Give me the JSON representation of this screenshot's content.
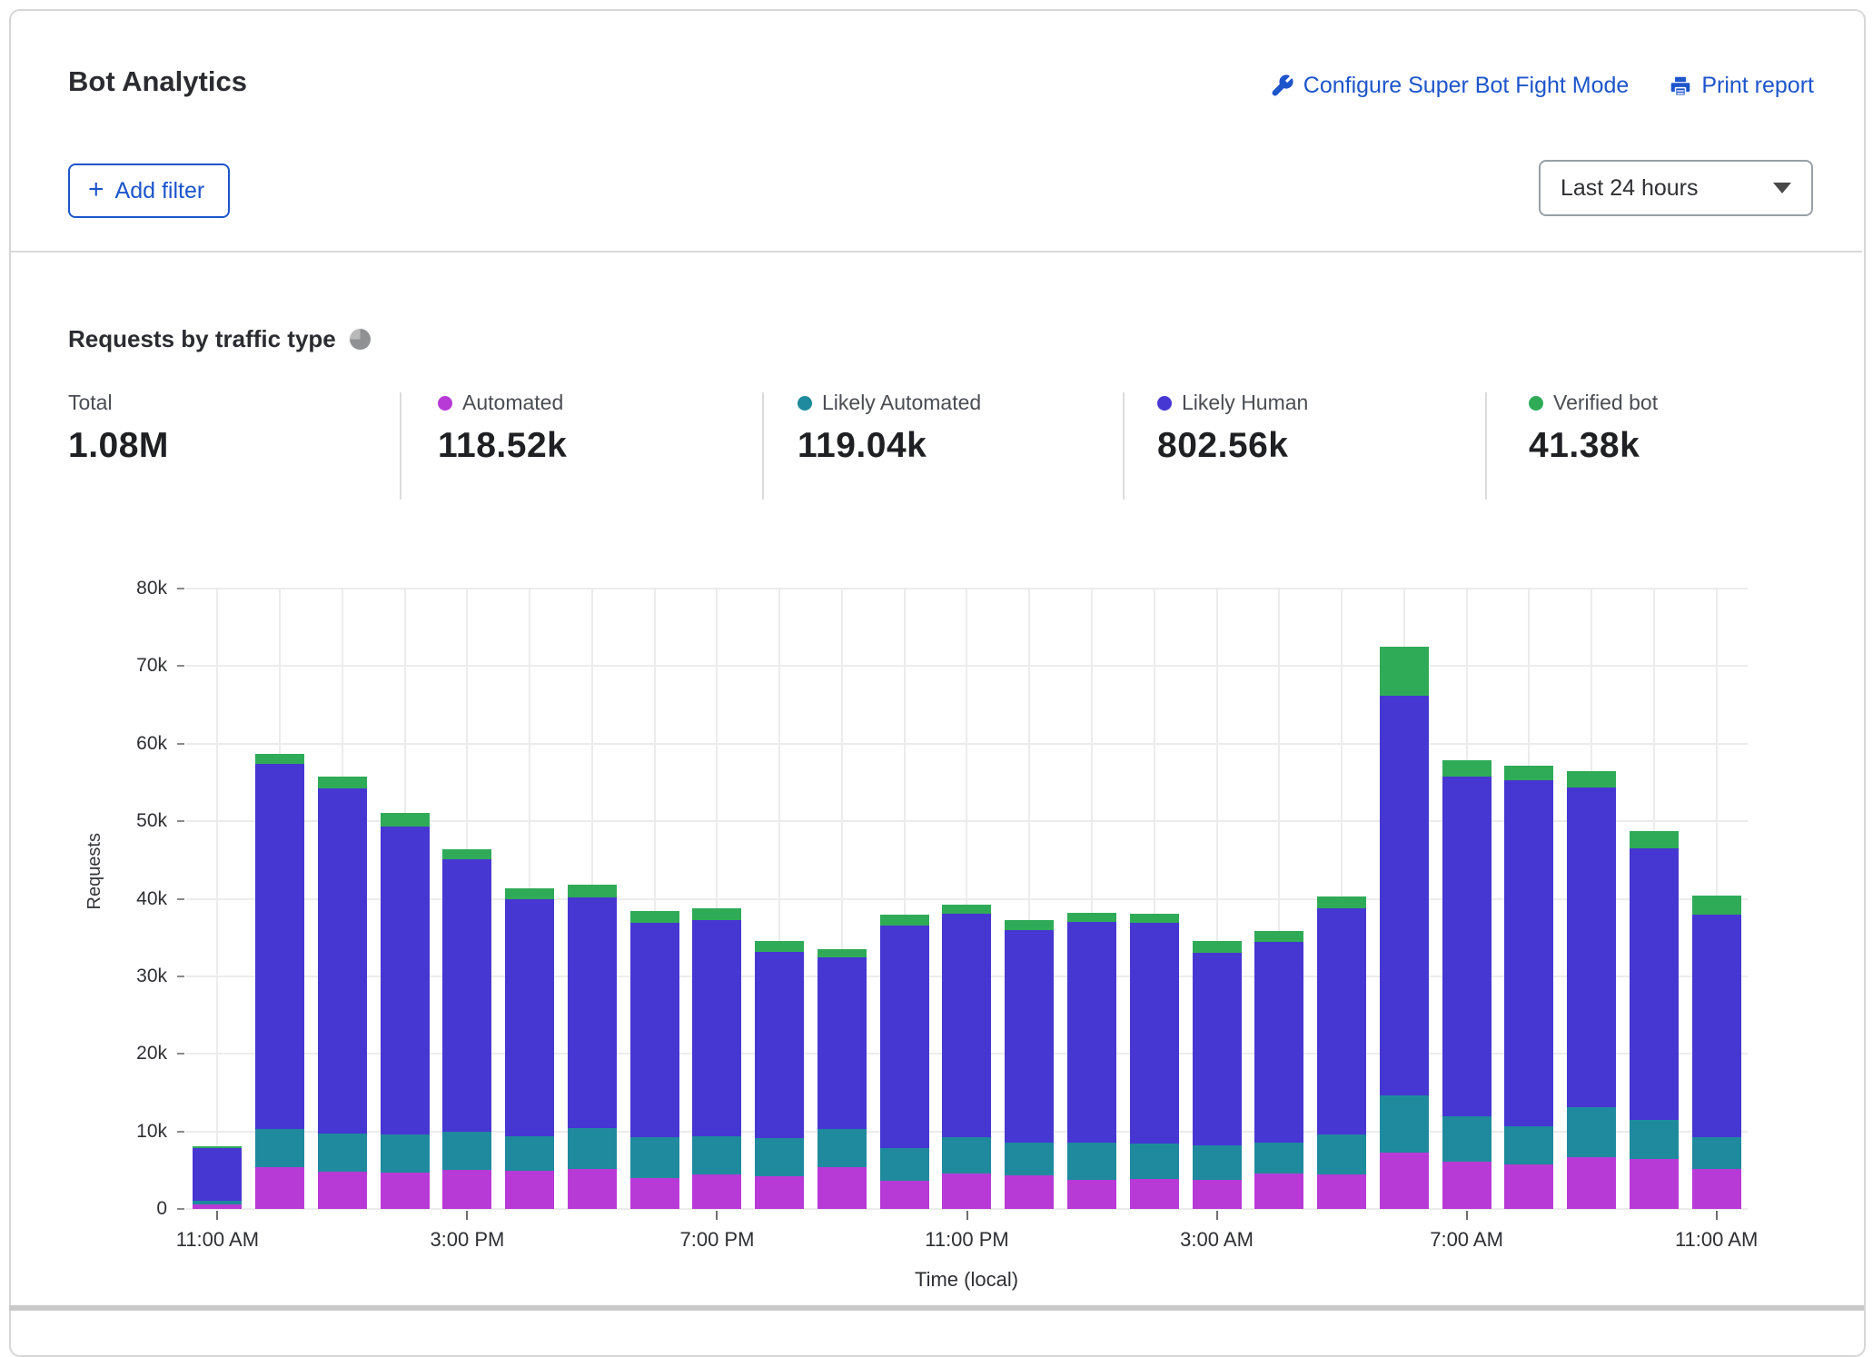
{
  "header": {
    "title": "Bot Analytics",
    "configure_link": "Configure Super Bot Fight Mode",
    "print_link": "Print report",
    "add_filter_label": "Add filter",
    "plus_glyph": "+",
    "time_range_value": "Last 24 hours",
    "link_color": "#1d55cb"
  },
  "section": {
    "title": "Requests by traffic type"
  },
  "stats": {
    "total": {
      "label": "Total",
      "value": "1.08M"
    },
    "series": [
      {
        "label": "Automated",
        "value": "118.52k",
        "color": "#b83ad6"
      },
      {
        "label": "Likely Automated",
        "value": "119.04k",
        "color": "#1f8a9e"
      },
      {
        "label": "Likely Human",
        "value": "802.56k",
        "color": "#4637d2"
      },
      {
        "label": "Verified bot",
        "value": "41.38k",
        "color": "#2fab58"
      }
    ]
  },
  "chart_data": {
    "type": "bar",
    "stacked": true,
    "title": "Requests by traffic type",
    "xlabel": "Time (local)",
    "ylabel": "Requests",
    "ylim": [
      0,
      80000
    ],
    "ytick_step": 10000,
    "ytick_labels": [
      "0",
      "10k",
      "20k",
      "30k",
      "40k",
      "50k",
      "60k",
      "70k",
      "80k"
    ],
    "grid": true,
    "legend_position": "top",
    "x_tick_every": 4,
    "x_tick_labels": [
      "11:00 AM",
      "3:00 PM",
      "7:00 PM",
      "11:00 PM",
      "3:00 AM",
      "7:00 AM",
      "11:00 AM"
    ],
    "categories": [
      "11:00 AM",
      "12:00 PM",
      "1:00 PM",
      "2:00 PM",
      "3:00 PM",
      "4:00 PM",
      "5:00 PM",
      "6:00 PM",
      "7:00 PM",
      "8:00 PM",
      "9:00 PM",
      "10:00 PM",
      "11:00 PM",
      "12:00 AM",
      "1:00 AM",
      "2:00 AM",
      "3:00 AM",
      "4:00 AM",
      "5:00 AM",
      "6:00 AM",
      "7:00 AM",
      "8:00 AM",
      "9:00 AM",
      "10:00 AM",
      "11:00 AM"
    ],
    "series": [
      {
        "name": "Automated",
        "color": "#b83ad6",
        "values": [
          600,
          5400,
          4800,
          4700,
          5000,
          4900,
          5100,
          4000,
          4400,
          4200,
          5400,
          3600,
          4600,
          4300,
          3800,
          3900,
          3800,
          4600,
          4400,
          7300,
          6100,
          5700,
          6700,
          6500,
          5100
        ]
      },
      {
        "name": "Likely Automated",
        "color": "#1f8a9e",
        "values": [
          500,
          4900,
          4900,
          4900,
          4900,
          4500,
          5300,
          5200,
          5000,
          4900,
          4900,
          4200,
          4600,
          4200,
          4700,
          4500,
          4400,
          4000,
          5200,
          7300,
          5800,
          5000,
          6400,
          5000,
          4200
        ]
      },
      {
        "name": "Likely Human",
        "color": "#4637d2",
        "values": [
          6700,
          47100,
          44500,
          39700,
          35200,
          30500,
          29800,
          27700,
          27800,
          24100,
          22200,
          28800,
          28900,
          27500,
          28500,
          28500,
          24800,
          25800,
          29200,
          51600,
          43800,
          44600,
          41200,
          35000,
          28700
        ]
      },
      {
        "name": "Verified bot",
        "color": "#2fab58",
        "values": [
          300,
          1300,
          1600,
          1800,
          1300,
          1400,
          1600,
          1500,
          1600,
          1300,
          1000,
          1300,
          1200,
          1300,
          1200,
          1200,
          1500,
          1400,
          1500,
          6300,
          2200,
          1900,
          2200,
          2200,
          2400
        ]
      }
    ]
  }
}
